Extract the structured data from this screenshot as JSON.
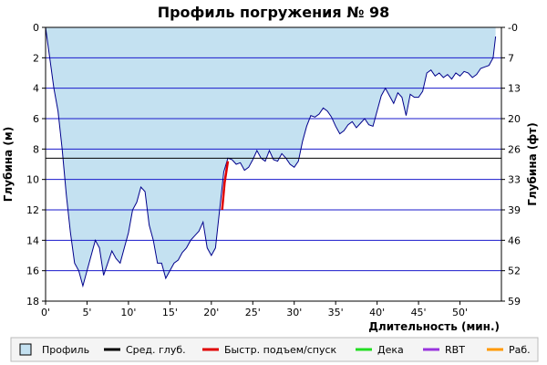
{
  "chart_data": {
    "type": "area",
    "title": "Профиль погружения № 98",
    "xlabel": "Длительность (мин.)",
    "ylabel_left": "Глубина (м)",
    "ylabel_right": "Глубина (фт)",
    "xlim": [
      0,
      55
    ],
    "ylim": [
      0,
      18
    ],
    "y_inverted": true,
    "x_ticks": [
      0,
      5,
      10,
      15,
      20,
      25,
      30,
      35,
      40,
      45,
      50
    ],
    "x_tick_labels": [
      "0'",
      "5'",
      "10'",
      "15'",
      "20'",
      "25'",
      "30'",
      "35'",
      "40'",
      "45'",
      "50'"
    ],
    "y_ticks": [
      0,
      2,
      4,
      6,
      8,
      10,
      12,
      14,
      16,
      18
    ],
    "y_tick_labels": [
      "0",
      "2",
      "4",
      "6",
      "8",
      "10",
      "12",
      "14",
      "16",
      "18"
    ],
    "y_right_ticks": [
      0,
      7,
      13,
      20,
      26,
      33,
      39,
      46,
      52,
      59
    ],
    "y_right_tick_labels": [
      "-0",
      "7",
      "13",
      "20",
      "26",
      "33",
      "39",
      "46",
      "52",
      "59"
    ],
    "grid": {
      "horizontal": true,
      "color": "#1a1acc"
    },
    "average_depth": 8.6,
    "fast_ascent_segment": {
      "x": [
        21.3,
        21.6,
        22.0
      ],
      "y": [
        12.0,
        10.2,
        8.8
      ]
    },
    "series": [
      {
        "name": "Профиль",
        "x": [
          0,
          0.5,
          1,
          1.5,
          2,
          2.5,
          3,
          3.5,
          4,
          4.5,
          5,
          5.5,
          6,
          6.5,
          7,
          7.5,
          8,
          8.5,
          9,
          9.5,
          10,
          10.5,
          11,
          11.5,
          12,
          12.5,
          13,
          13.5,
          14,
          14.5,
          15,
          15.5,
          16,
          16.5,
          17,
          17.5,
          18,
          18.5,
          19,
          19.5,
          20,
          20.5,
          21,
          21.5,
          22,
          22.5,
          23,
          23.5,
          24,
          24.5,
          25,
          25.5,
          26,
          26.5,
          27,
          27.5,
          28,
          28.5,
          29,
          29.5,
          30,
          30.5,
          31,
          31.5,
          32,
          32.5,
          33,
          33.5,
          34,
          34.5,
          35,
          35.5,
          36,
          36.5,
          37,
          37.5,
          38,
          38.5,
          39,
          39.5,
          40,
          40.5,
          41,
          41.5,
          42,
          42.5,
          43,
          43.5,
          44,
          44.5,
          45,
          45.5,
          46,
          46.5,
          47,
          47.5,
          48,
          48.5,
          49,
          49.5,
          50,
          50.5,
          51,
          51.5,
          52,
          52.5,
          53,
          53.5,
          54,
          54.3
        ],
        "y": [
          0,
          2,
          4,
          5.5,
          8,
          11,
          13.5,
          15.5,
          16,
          17,
          16,
          15,
          14,
          14.5,
          16.3,
          15.5,
          14.7,
          15.2,
          15.5,
          14.5,
          13.5,
          12,
          11.5,
          10.5,
          10.8,
          13,
          14,
          15.5,
          15.5,
          16.5,
          16,
          15.5,
          15.3,
          14.8,
          14.5,
          14,
          13.7,
          13.4,
          12.8,
          14.5,
          15,
          14.5,
          12,
          9.5,
          8.6,
          8.7,
          9,
          8.9,
          9.4,
          9.2,
          8.7,
          8.1,
          8.6,
          8.8,
          8.1,
          8.7,
          8.8,
          8.3,
          8.6,
          9,
          9.2,
          8.8,
          7.5,
          6.5,
          5.8,
          5.9,
          5.7,
          5.3,
          5.5,
          5.9,
          6.5,
          7,
          6.8,
          6.4,
          6.2,
          6.6,
          6.3,
          6.0,
          6.4,
          6.5,
          5.5,
          4.5,
          4.0,
          4.5,
          5.0,
          4.3,
          4.6,
          5.8,
          4.4,
          4.6,
          4.6,
          4.2,
          3.0,
          2.8,
          3.2,
          3.0,
          3.3,
          3.1,
          3.4,
          3.0,
          3.2,
          2.9,
          3.0,
          3.3,
          3.1,
          2.7,
          2.6,
          2.5,
          2.0,
          0.6
        ]
      }
    ],
    "colors": {
      "area_fill": "#c4e1f1",
      "profile_line": "#00008b",
      "avg_depth": "#000000",
      "fast_ascent": "#e00000",
      "deco": "#22dd22",
      "rbt": "#9933dd",
      "work": "#ff9900"
    },
    "legend": {
      "placement": "bottom",
      "items": [
        {
          "label": "Профиль",
          "kind": "box",
          "color": "#c4e1f1"
        },
        {
          "label": "Сред. глуб.",
          "kind": "line",
          "color": "#000000"
        },
        {
          "label": "Быстр. подъем/спуск",
          "kind": "line",
          "color": "#e00000"
        },
        {
          "label": "Дека",
          "kind": "line",
          "color": "#22dd22"
        },
        {
          "label": "RBT",
          "kind": "line",
          "color": "#9933dd"
        },
        {
          "label": "Раб.",
          "kind": "line",
          "color": "#ff9900"
        }
      ]
    }
  }
}
